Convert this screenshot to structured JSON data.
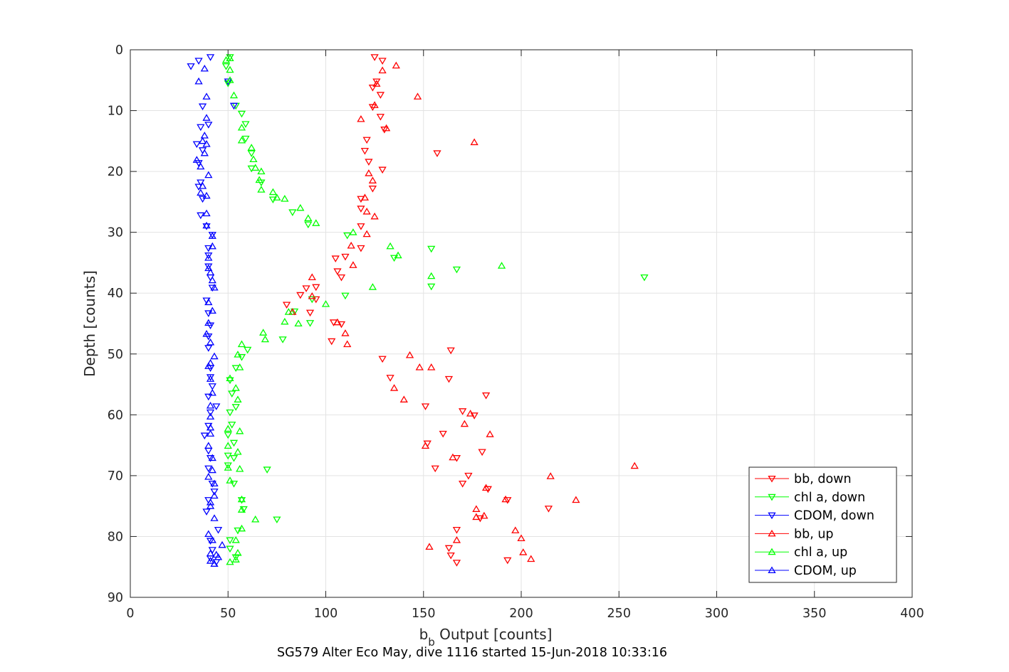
{
  "chart_data": {
    "type": "scatter",
    "xlabel": "b",
    "xlabel_subscript": "b",
    "xlabel_rest": " Output [counts]",
    "ylabel": "Depth [counts]",
    "caption": "SG579 Alter Eco May, dive 1116 started 15-Jun-2018 10:33:16",
    "xlim": [
      0,
      400
    ],
    "ylim": [
      0,
      90
    ],
    "y_reversed": true,
    "grid": true,
    "xticks": [
      0,
      50,
      100,
      150,
      200,
      250,
      300,
      350,
      400
    ],
    "yticks": [
      0,
      10,
      20,
      30,
      40,
      50,
      60,
      70,
      80,
      90
    ],
    "xtick_labels": [
      "0",
      "50",
      "100",
      "150",
      "200",
      "250",
      "300",
      "350",
      "400"
    ],
    "ytick_labels": [
      "0",
      "10",
      "20",
      "30",
      "40",
      "50",
      "60",
      "70",
      "80",
      "90"
    ],
    "legend_position": "bottom-right",
    "series": [
      {
        "name": "bb, down",
        "color": "#ff0000",
        "marker": "triangle-down",
        "points": [
          [
            125,
            1.2
          ],
          [
            129,
            1.8
          ],
          [
            126,
            5.2
          ],
          [
            124,
            6.2
          ],
          [
            124,
            9.4
          ],
          [
            128,
            11.0
          ],
          [
            121,
            14.8
          ],
          [
            120,
            16.6
          ],
          [
            122,
            18.4
          ],
          [
            129,
            19.7
          ],
          [
            124,
            22.8
          ],
          [
            118,
            24.5
          ],
          [
            118,
            26.1
          ],
          [
            118,
            29.0
          ],
          [
            118,
            32.6
          ],
          [
            110,
            34.0
          ],
          [
            105,
            34.3
          ],
          [
            106,
            36.4
          ],
          [
            108,
            37.4
          ],
          [
            95,
            39.0
          ],
          [
            90,
            39.2
          ],
          [
            87,
            40.3
          ],
          [
            95,
            41.0
          ],
          [
            80,
            41.9
          ],
          [
            92,
            43.2
          ],
          [
            104,
            44.8
          ],
          [
            108,
            45.1
          ],
          [
            103,
            47.9
          ],
          [
            129,
            50.8
          ],
          [
            164,
            49.4
          ],
          [
            133,
            53.9
          ],
          [
            163,
            54.1
          ],
          [
            182,
            56.8
          ],
          [
            151,
            58.6
          ],
          [
            170,
            59.4
          ],
          [
            176,
            60.1
          ],
          [
            160,
            63.1
          ],
          [
            152,
            64.7
          ],
          [
            180,
            66.1
          ],
          [
            167,
            67.1
          ],
          [
            156,
            68.8
          ],
          [
            173,
            70.0
          ],
          [
            170,
            71.3
          ],
          [
            183,
            72.2
          ],
          [
            214,
            75.4
          ],
          [
            193,
            74.0
          ],
          [
            179,
            77.0
          ],
          [
            167,
            78.9
          ],
          [
            163,
            81.9
          ],
          [
            164,
            83.1
          ],
          [
            193,
            83.9
          ],
          [
            167,
            84.3
          ],
          [
            157,
            17.0
          ],
          [
            130,
            13.1
          ],
          [
            128,
            7.4
          ]
        ]
      },
      {
        "name": "chl a, down",
        "color": "#00ff00",
        "marker": "triangle-down",
        "points": [
          [
            51,
            1.2
          ],
          [
            49,
            2.7
          ],
          [
            50,
            5.5
          ],
          [
            54,
            9.2
          ],
          [
            57,
            10.5
          ],
          [
            59,
            12.2
          ],
          [
            59,
            14.6
          ],
          [
            62,
            17.0
          ],
          [
            62,
            19.5
          ],
          [
            67,
            21.8
          ],
          [
            73,
            24.6
          ],
          [
            83,
            26.7
          ],
          [
            91,
            28.7
          ],
          [
            111,
            30.5
          ],
          [
            154,
            32.7
          ],
          [
            135,
            34.2
          ],
          [
            167,
            36.1
          ],
          [
            263,
            37.4
          ],
          [
            154,
            38.9
          ],
          [
            110,
            40.4
          ],
          [
            93,
            41.0
          ],
          [
            84,
            43.0
          ],
          [
            92,
            44.9
          ],
          [
            78,
            47.6
          ],
          [
            60,
            49.3
          ],
          [
            57,
            50.5
          ],
          [
            54,
            52.3
          ],
          [
            51,
            54.3
          ],
          [
            52,
            56.5
          ],
          [
            54,
            58.7
          ],
          [
            51,
            59.6
          ],
          [
            52,
            61.6
          ],
          [
            50,
            63.3
          ],
          [
            53,
            64.6
          ],
          [
            50,
            66.7
          ],
          [
            53,
            67.1
          ],
          [
            50,
            68.3
          ],
          [
            70,
            69.0
          ],
          [
            53,
            71.3
          ],
          [
            57,
            74.0
          ],
          [
            58,
            75.5
          ],
          [
            75,
            77.2
          ],
          [
            55,
            79.0
          ],
          [
            51,
            80.6
          ],
          [
            51,
            82.0
          ],
          [
            54,
            83.4
          ]
        ]
      },
      {
        "name": "CDOM, down",
        "color": "#0000ff",
        "marker": "triangle-down",
        "points": [
          [
            41,
            1.2
          ],
          [
            35,
            1.8
          ],
          [
            31,
            2.7
          ],
          [
            50,
            5.2
          ],
          [
            37,
            9.3
          ],
          [
            53,
            9.2
          ],
          [
            36,
            12.7
          ],
          [
            40,
            12.3
          ],
          [
            34,
            15.5
          ],
          [
            37,
            16.5
          ],
          [
            35,
            18.6
          ],
          [
            36,
            21.8
          ],
          [
            35,
            22.5
          ],
          [
            37,
            24.5
          ],
          [
            36,
            27.2
          ],
          [
            39,
            29.0
          ],
          [
            42,
            30.4
          ],
          [
            40,
            32.6
          ],
          [
            40,
            33.8
          ],
          [
            40,
            35.6
          ],
          [
            41,
            37.4
          ],
          [
            42,
            39.1
          ],
          [
            39,
            41.2
          ],
          [
            40,
            43.3
          ],
          [
            41,
            45.3
          ],
          [
            40,
            47.1
          ],
          [
            40,
            49.0
          ],
          [
            41,
            52.3
          ],
          [
            41,
            53.8
          ],
          [
            42,
            55.3
          ],
          [
            40,
            57.0
          ],
          [
            44,
            58.6
          ],
          [
            41,
            59.6
          ],
          [
            40,
            61.8
          ],
          [
            38,
            63.4
          ],
          [
            40,
            65.9
          ],
          [
            41,
            67.1
          ],
          [
            40,
            68.8
          ],
          [
            42,
            71.3
          ],
          [
            43,
            72.6
          ],
          [
            40,
            74.0
          ],
          [
            39,
            75.9
          ],
          [
            45,
            78.9
          ],
          [
            41,
            80.7
          ],
          [
            42,
            82.2
          ],
          [
            41,
            83.6
          ],
          [
            44,
            84.2
          ]
        ]
      },
      {
        "name": "bb, up",
        "color": "#ff0000",
        "marker": "triangle-up",
        "points": [
          [
            136,
            2.6
          ],
          [
            129,
            3.4
          ],
          [
            126,
            5.6
          ],
          [
            147,
            7.7
          ],
          [
            125,
            9.1
          ],
          [
            131,
            12.9
          ],
          [
            118,
            11.4
          ],
          [
            176,
            15.2
          ],
          [
            122,
            20.3
          ],
          [
            124,
            21.5
          ],
          [
            120,
            24.3
          ],
          [
            121,
            26.6
          ],
          [
            125,
            27.4
          ],
          [
            121,
            30.3
          ],
          [
            113,
            32.2
          ],
          [
            114,
            35.4
          ],
          [
            93,
            37.4
          ],
          [
            93,
            40.5
          ],
          [
            83,
            43.1
          ],
          [
            106,
            44.8
          ],
          [
            110,
            46.6
          ],
          [
            111,
            48.4
          ],
          [
            143,
            50.2
          ],
          [
            148,
            52.2
          ],
          [
            154,
            52.2
          ],
          [
            135,
            55.6
          ],
          [
            140,
            57.5
          ],
          [
            174,
            59.8
          ],
          [
            171,
            61.5
          ],
          [
            184,
            63.2
          ],
          [
            151,
            65.1
          ],
          [
            165,
            67.0
          ],
          [
            258,
            68.4
          ],
          [
            215,
            70.1
          ],
          [
            182,
            72.0
          ],
          [
            192,
            73.9
          ],
          [
            228,
            74.0
          ],
          [
            177,
            75.5
          ],
          [
            177,
            76.8
          ],
          [
            181,
            76.6
          ],
          [
            197,
            79.0
          ],
          [
            200,
            80.3
          ],
          [
            167,
            80.6
          ],
          [
            153,
            81.7
          ],
          [
            201,
            82.6
          ],
          [
            205,
            83.7
          ]
        ]
      },
      {
        "name": "chl a, up",
        "color": "#00ff00",
        "marker": "triangle-up",
        "points": [
          [
            51,
            1.4
          ],
          [
            49,
            1.7
          ],
          [
            51,
            3.3
          ],
          [
            51,
            5.0
          ],
          [
            53,
            7.5
          ],
          [
            57,
            12.8
          ],
          [
            57,
            14.9
          ],
          [
            62,
            16.1
          ],
          [
            63,
            18.0
          ],
          [
            64,
            19.4
          ],
          [
            67,
            20.0
          ],
          [
            66,
            21.4
          ],
          [
            67,
            23.0
          ],
          [
            73,
            23.4
          ],
          [
            75,
            24.3
          ],
          [
            79,
            24.5
          ],
          [
            87,
            26.0
          ],
          [
            91,
            27.7
          ],
          [
            95,
            28.5
          ],
          [
            114,
            30.0
          ],
          [
            133,
            32.3
          ],
          [
            137,
            33.8
          ],
          [
            154,
            37.2
          ],
          [
            124,
            39.0
          ],
          [
            190,
            35.5
          ],
          [
            100,
            41.8
          ],
          [
            81,
            43.1
          ],
          [
            79,
            44.7
          ],
          [
            86,
            45.0
          ],
          [
            68,
            46.5
          ],
          [
            69,
            47.6
          ],
          [
            57,
            48.4
          ],
          [
            55,
            50.1
          ],
          [
            56,
            52.2
          ],
          [
            51,
            54.0
          ],
          [
            54,
            55.6
          ],
          [
            55,
            57.5
          ],
          [
            50,
            62.3
          ],
          [
            56,
            62.7
          ],
          [
            50,
            65.1
          ],
          [
            55,
            66.1
          ],
          [
            50,
            68.7
          ],
          [
            56,
            68.9
          ],
          [
            51,
            70.8
          ],
          [
            57,
            73.9
          ],
          [
            57,
            75.6
          ],
          [
            64,
            77.2
          ],
          [
            57,
            78.7
          ],
          [
            54,
            80.6
          ],
          [
            55,
            82.7
          ],
          [
            54,
            83.8
          ],
          [
            51,
            84.2
          ]
        ]
      },
      {
        "name": "CDOM, up",
        "color": "#0000ff",
        "marker": "triangle-up",
        "points": [
          [
            38,
            3.1
          ],
          [
            35,
            5.2
          ],
          [
            39,
            7.7
          ],
          [
            39,
            11.2
          ],
          [
            38,
            14.1
          ],
          [
            37,
            15.0
          ],
          [
            39,
            15.5
          ],
          [
            38,
            17.0
          ],
          [
            34,
            18.1
          ],
          [
            36,
            19.2
          ],
          [
            40,
            20.6
          ],
          [
            37,
            22.4
          ],
          [
            36,
            23.5
          ],
          [
            39,
            24.0
          ],
          [
            39,
            26.9
          ],
          [
            39,
            28.9
          ],
          [
            42,
            30.6
          ],
          [
            42,
            32.3
          ],
          [
            40,
            34.2
          ],
          [
            40,
            35.9
          ],
          [
            41,
            36.6
          ],
          [
            42,
            37.9
          ],
          [
            43,
            39.1
          ],
          [
            40,
            41.5
          ],
          [
            42,
            42.9
          ],
          [
            40,
            44.9
          ],
          [
            39,
            46.7
          ],
          [
            41,
            48.1
          ],
          [
            43,
            50.4
          ],
          [
            41,
            51.5
          ],
          [
            40,
            52.0
          ],
          [
            41,
            54.1
          ],
          [
            42,
            56.4
          ],
          [
            41,
            58.5
          ],
          [
            41,
            60.3
          ],
          [
            41,
            62.1
          ],
          [
            41,
            63.1
          ],
          [
            40,
            65.1
          ],
          [
            42,
            67.1
          ],
          [
            42,
            69.1
          ],
          [
            40,
            70.2
          ],
          [
            43,
            71.3
          ],
          [
            43,
            73.3
          ],
          [
            41,
            74.4
          ],
          [
            41,
            75.0
          ],
          [
            43,
            77.0
          ],
          [
            40,
            79.6
          ],
          [
            42,
            80.6
          ],
          [
            47,
            81.4
          ],
          [
            41,
            82.8
          ],
          [
            44,
            83.0
          ],
          [
            41,
            84.0
          ],
          [
            45,
            83.4
          ],
          [
            43,
            84.5
          ]
        ]
      }
    ]
  }
}
